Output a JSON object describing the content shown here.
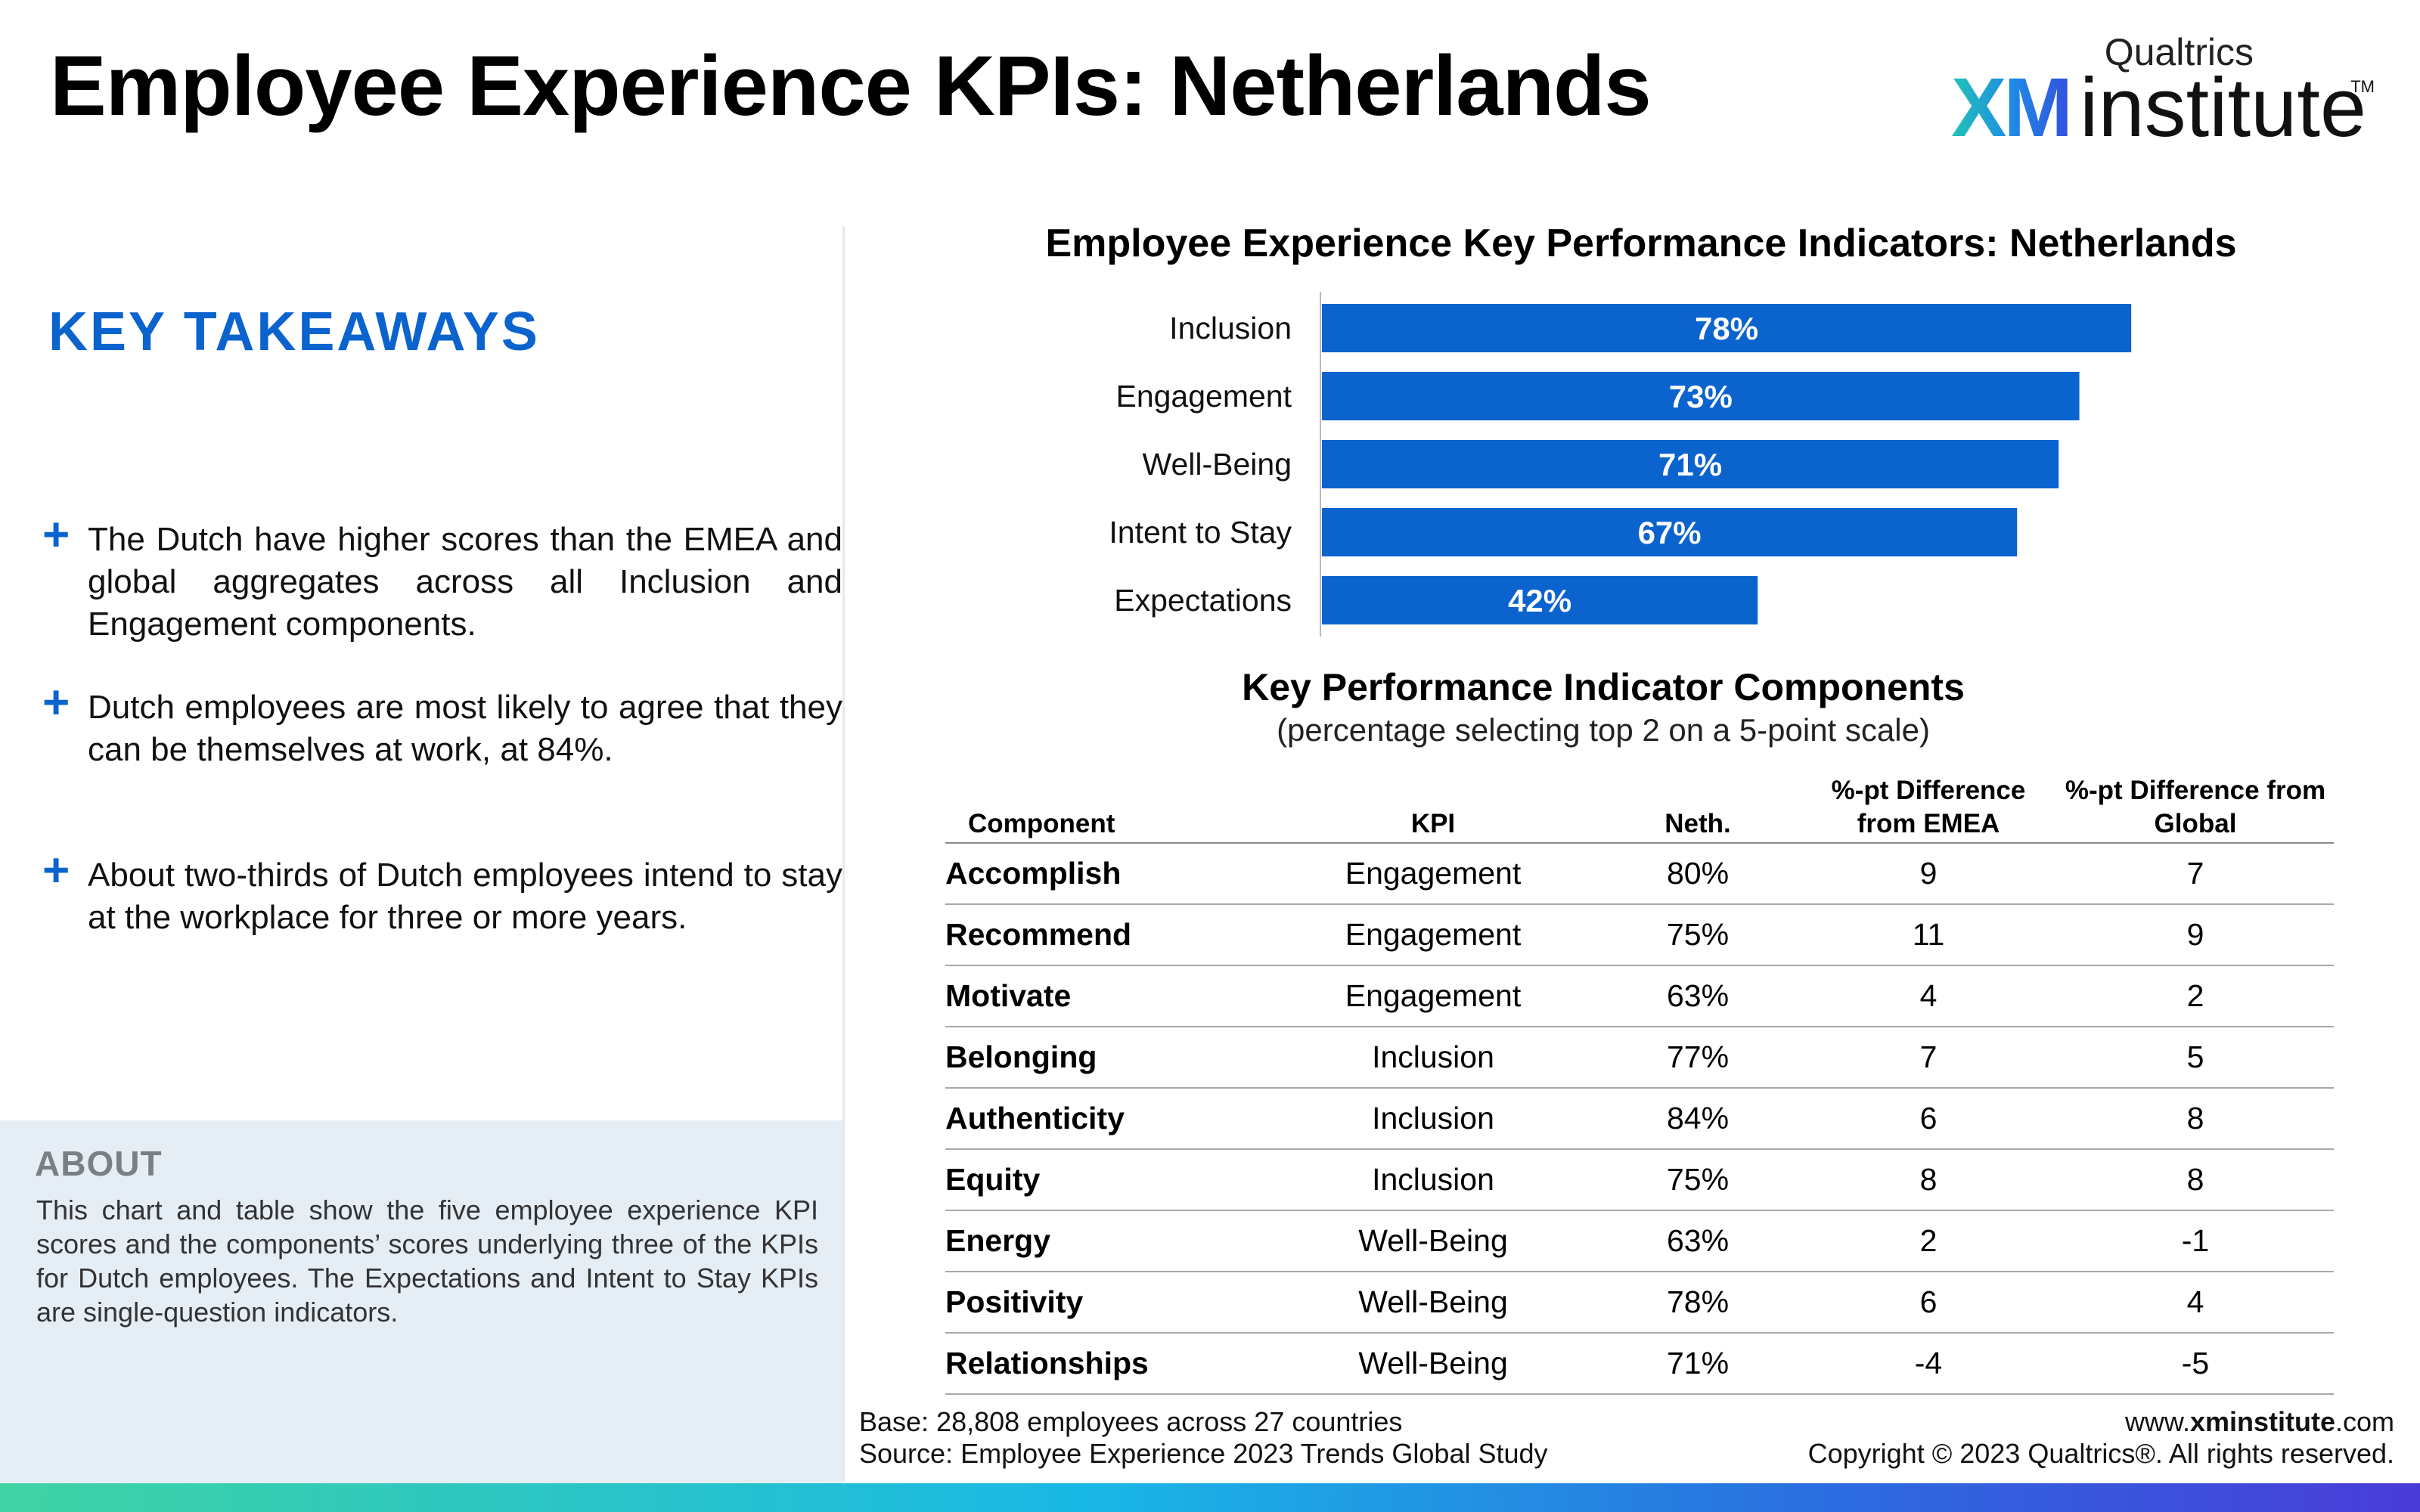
{
  "header": {
    "title": "Employee Experience KPIs: Netherlands",
    "logo": {
      "brand": "Qualtrics",
      "xm": "XM",
      "institute": "institute",
      "tm": "TM"
    }
  },
  "takeaways": {
    "heading": "KEY TAKEAWAYS",
    "items": [
      "The Dutch have higher scores than the EMEA and global aggregates across all Inclusion and Engagement components.",
      "Dutch employees are most likely to agree that they can be themselves at work, at 84%.",
      "About two-thirds of Dutch employees intend to stay at the workplace for three or more years."
    ],
    "bullet_symbol": "+"
  },
  "about": {
    "title": "ABOUT",
    "text": "This chart and table show the five employee experience KPI scores and the components’ scores underlying three of the KPIs for Dutch employees. The Expectations and Intent to Stay KPIs are single-question indicators."
  },
  "chart_data": {
    "type": "bar",
    "orientation": "horizontal",
    "title": "Employee Experience Key Performance Indicators: Netherlands",
    "categories": [
      "Inclusion",
      "Engagement",
      "Well-Being",
      "Intent to Stay",
      "Expectations"
    ],
    "values": [
      78,
      73,
      71,
      67,
      42
    ],
    "value_labels": [
      "78%",
      "73%",
      "71%",
      "67%",
      "42%"
    ],
    "xlim": [
      0,
      100
    ],
    "bar_color": "#0b63ce",
    "grid": false
  },
  "table": {
    "title": "Key Performance Indicator Components",
    "subtitle": "(percentage selecting top 2 on a 5-point scale)",
    "headers": {
      "component": "Component",
      "kpi": "KPI",
      "neth": "Neth.",
      "emea_line1": "%-pt Difference",
      "emea_line2": "from EMEA",
      "global_line1": "%-pt Difference from",
      "global_line2": "Global"
    },
    "rows": [
      {
        "component": "Accomplish",
        "kpi": "Engagement",
        "neth": "80%",
        "emea": "9",
        "global": "7"
      },
      {
        "component": "Recommend",
        "kpi": "Engagement",
        "neth": "75%",
        "emea": "11",
        "global": "9"
      },
      {
        "component": "Motivate",
        "kpi": "Engagement",
        "neth": "63%",
        "emea": "4",
        "global": "2"
      },
      {
        "component": "Belonging",
        "kpi": "Inclusion",
        "neth": "77%",
        "emea": "7",
        "global": "5"
      },
      {
        "component": "Authenticity",
        "kpi": "Inclusion",
        "neth": "84%",
        "emea": "6",
        "global": "8"
      },
      {
        "component": "Equity",
        "kpi": "Inclusion",
        "neth": "75%",
        "emea": "8",
        "global": "8"
      },
      {
        "component": "Energy",
        "kpi": "Well-Being",
        "neth": "63%",
        "emea": "2",
        "global": "-1"
      },
      {
        "component": "Positivity",
        "kpi": "Well-Being",
        "neth": "78%",
        "emea": "6",
        "global": "4"
      },
      {
        "component": "Relationships",
        "kpi": "Well-Being",
        "neth": "71%",
        "emea": "-4",
        "global": "-5"
      }
    ]
  },
  "footer": {
    "base": "Base: 28,808 employees across 27 countries",
    "source": "Source: Employee Experience 2023 Trends Global Study",
    "url_prefix": "www.",
    "url_bold": "xminstitute",
    "url_suffix": ".com",
    "copyright": "Copyright © 2023 Qualtrics®. All rights reserved."
  }
}
